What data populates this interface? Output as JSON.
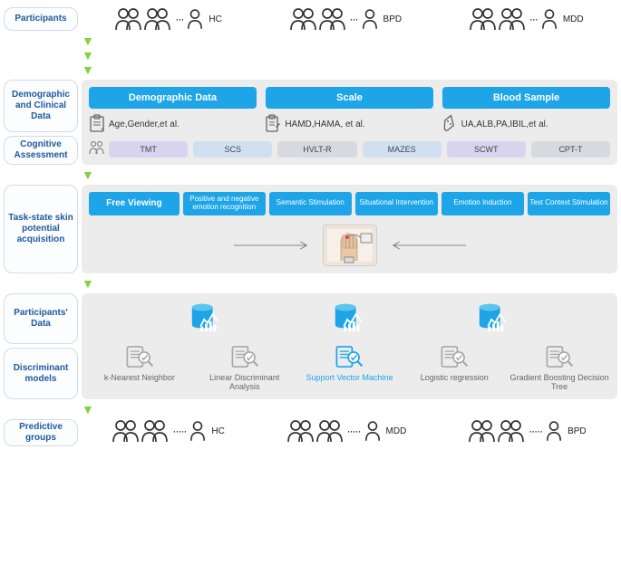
{
  "colors": {
    "accent_blue": "#1da5e8",
    "label_blue": "#1e5aa0",
    "panel_bg": "#ececec",
    "green_arrow": "#7fd43f",
    "pill_purple": "#d8d4f0",
    "pill_blue": "#d0e0f0",
    "pill_grey": "#d8d8e0",
    "grey_icon": "#a8a8a8"
  },
  "labels": {
    "participants": "Participants",
    "demographic": "Demographic and Clinical Data",
    "cognitive": "Cognitive Assessment",
    "task_state": "Task-state skin potential acquisition",
    "participants_data": "Participants' Data",
    "discriminant": "Discriminant models",
    "predictive": "Predictive groups"
  },
  "groups_top": [
    {
      "label": "HC"
    },
    {
      "label": "BPD"
    },
    {
      "label": "MDD"
    }
  ],
  "groups_bottom": [
    {
      "label": "HC"
    },
    {
      "label": "MDD"
    },
    {
      "label": "BPD"
    }
  ],
  "blue_sections": [
    {
      "title": "Demographic Data",
      "icon": "clipboard",
      "desc": "Age,Gender,et al."
    },
    {
      "title": "Scale",
      "icon": "form",
      "desc": "HAMD,HAMA, et al."
    },
    {
      "title": "Blood Sample",
      "icon": "tube",
      "desc": "UA,ALB,PA,IBIL,et al."
    }
  ],
  "cognitive_tests": [
    {
      "name": "TMT",
      "style": "pill-purple"
    },
    {
      "name": "SCS",
      "style": "pill-blue"
    },
    {
      "name": "HVLT-R",
      "style": "pill-grey"
    },
    {
      "name": "MAZES",
      "style": "pill-blue"
    },
    {
      "name": "SCWT",
      "style": "pill-purple"
    },
    {
      "name": "CPT-T",
      "style": "pill-grey"
    }
  ],
  "tasks": [
    {
      "name": "Free Viewing",
      "big": true
    },
    {
      "name": "Positive and negative emotion recognition",
      "big": false
    },
    {
      "name": "Semantic Stimulation",
      "big": false
    },
    {
      "name": "Situational Intervention",
      "big": false
    },
    {
      "name": "Emotion Induction",
      "big": false
    },
    {
      "name": "Text Context Stimulation",
      "big": false
    }
  ],
  "models": [
    {
      "name": "k-Nearest Neighbor",
      "active": false
    },
    {
      "name": "Linear Discriminant Analysis",
      "active": false
    },
    {
      "name": "Support Vector Machine",
      "active": true
    },
    {
      "name": "Logistic regression",
      "active": false
    },
    {
      "name": "Gradient Boosting Decision Tree",
      "active": false
    }
  ]
}
